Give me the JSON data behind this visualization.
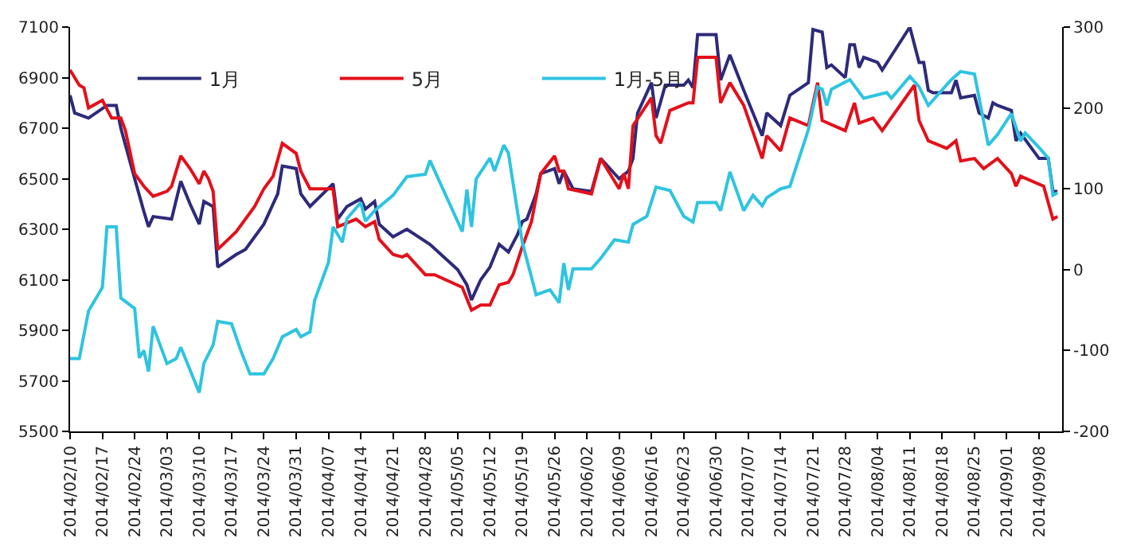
{
  "chart_data": {
    "type": "line",
    "xlim": [
      "2014-02-10",
      "2014-09-13"
    ],
    "xticks": [
      {
        "value": "2014-02-10",
        "label": "2014/02/10"
      },
      {
        "value": "2014-02-17",
        "label": "2014/02/17"
      },
      {
        "value": "2014-02-24",
        "label": "2014/02/24"
      },
      {
        "value": "2014-03-03",
        "label": "2014/03/03"
      },
      {
        "value": "2014-03-10",
        "label": "2014/03/10"
      },
      {
        "value": "2014-03-17",
        "label": "2014/03/17"
      },
      {
        "value": "2014-03-24",
        "label": "2014/03/24"
      },
      {
        "value": "2014-03-31",
        "label": "2014/03/31"
      },
      {
        "value": "2014-04-07",
        "label": "2014/04/07"
      },
      {
        "value": "2014-04-14",
        "label": "2014/04/14"
      },
      {
        "value": "2014-04-21",
        "label": "2014/04/21"
      },
      {
        "value": "2014-04-28",
        "label": "2014/04/28"
      },
      {
        "value": "2014-05-05",
        "label": "2014/05/05"
      },
      {
        "value": "2014-05-12",
        "label": "2014/05/12"
      },
      {
        "value": "2014-05-19",
        "label": "2014/05/19"
      },
      {
        "value": "2014-05-26",
        "label": "2014/05/26"
      },
      {
        "value": "2014-06-02",
        "label": "2014/06/02"
      },
      {
        "value": "2014-06-09",
        "label": "2014/06/09"
      },
      {
        "value": "2014-06-16",
        "label": "2014/06/16"
      },
      {
        "value": "2014-06-23",
        "label": "2014/06/23"
      },
      {
        "value": "2014-06-30",
        "label": "2014/06/30"
      },
      {
        "value": "2014-07-07",
        "label": "2014/07/07"
      },
      {
        "value": "2014-07-14",
        "label": "2014/07/14"
      },
      {
        "value": "2014-07-21",
        "label": "2014/07/21"
      },
      {
        "value": "2014-07-28",
        "label": "2014/07/28"
      },
      {
        "value": "2014-08-04",
        "label": "2014/08/04"
      },
      {
        "value": "2014-08-11",
        "label": "2014/08/11"
      },
      {
        "value": "2014-08-18",
        "label": "2014/08/18"
      },
      {
        "value": "2014-08-25",
        "label": "2014/08/25"
      },
      {
        "value": "2014-09-01",
        "label": "2014/09/01"
      },
      {
        "value": "2014-09-08",
        "label": "2014/09/08"
      }
    ],
    "ylim": [
      5500,
      7100
    ],
    "yticks": [
      5500,
      5700,
      5900,
      6100,
      6300,
      6500,
      6700,
      6900,
      7100
    ],
    "y2lim": [
      -200,
      300
    ],
    "y2ticks": [
      -200,
      -100,
      0,
      100,
      200,
      300
    ],
    "grid": false,
    "legend": "top",
    "marker": "none",
    "line_style": "solid",
    "series": [
      {
        "name": "1月",
        "color": "#2e2a7a",
        "x": [
          "2014-02-10",
          "2014-02-11",
          "2014-02-14",
          "2014-02-18",
          "2014-02-20",
          "2014-02-21",
          "2014-02-24",
          "2014-02-26",
          "2014-02-27",
          "2014-02-28",
          "2014-03-04",
          "2014-03-06",
          "2014-03-08",
          "2014-03-10",
          "2014-03-11",
          "2014-03-13",
          "2014-03-14",
          "2014-03-18",
          "2014-03-20",
          "2014-03-24",
          "2014-03-27",
          "2014-03-28",
          "2014-03-31",
          "2014-04-01",
          "2014-04-03",
          "2014-04-08",
          "2014-04-09",
          "2014-04-11",
          "2014-04-14",
          "2014-04-15",
          "2014-04-17",
          "2014-04-18",
          "2014-04-21",
          "2014-04-24",
          "2014-04-29",
          "2014-05-05",
          "2014-05-07",
          "2014-05-08",
          "2014-05-10",
          "2014-05-12",
          "2014-05-14",
          "2014-05-16",
          "2014-05-18",
          "2014-05-19",
          "2014-05-20",
          "2014-05-22",
          "2014-05-23",
          "2014-05-26",
          "2014-05-27",
          "2014-05-28",
          "2014-05-30",
          "2014-06-03",
          "2014-06-05",
          "2014-06-09",
          "2014-06-11",
          "2014-06-12",
          "2014-06-13",
          "2014-06-16",
          "2014-06-17",
          "2014-06-19",
          "2014-06-23",
          "2014-06-24",
          "2014-06-25",
          "2014-06-26",
          "2014-06-30",
          "2014-07-01",
          "2014-07-03",
          "2014-07-06",
          "2014-07-10",
          "2014-07-11",
          "2014-07-14",
          "2014-07-16",
          "2014-07-20",
          "2014-07-21",
          "2014-07-23",
          "2014-07-24",
          "2014-07-25",
          "2014-07-28",
          "2014-07-29",
          "2014-07-30",
          "2014-07-31",
          "2014-08-01",
          "2014-08-04",
          "2014-08-05",
          "2014-08-11",
          "2014-08-13",
          "2014-08-14",
          "2014-08-15",
          "2014-08-16",
          "2014-08-20",
          "2014-08-21",
          "2014-08-22",
          "2014-08-25",
          "2014-08-26",
          "2014-08-28",
          "2014-08-29",
          "2014-08-30",
          "2014-09-02",
          "2014-09-03",
          "2014-09-04",
          "2014-09-08",
          "2014-09-10",
          "2014-09-11",
          "2014-09-12"
        ],
        "values": [
          6830,
          6760,
          6740,
          6790,
          6790,
          6700,
          6500,
          6370,
          6310,
          6350,
          6340,
          6490,
          6400,
          6320,
          6410,
          6390,
          6150,
          6200,
          6220,
          6320,
          6440,
          6550,
          6540,
          6440,
          6390,
          6480,
          6340,
          6390,
          6420,
          6380,
          6410,
          6320,
          6270,
          6300,
          6240,
          6140,
          6080,
          6020,
          6100,
          6150,
          6240,
          6210,
          6280,
          6330,
          6340,
          6440,
          6520,
          6540,
          6480,
          6530,
          6460,
          6450,
          6580,
          6500,
          6530,
          6580,
          6760,
          6880,
          6740,
          6870,
          6870,
          6890,
          6860,
          7070,
          7070,
          6890,
          6990,
          6850,
          6670,
          6760,
          6710,
          6830,
          6880,
          7090,
          7080,
          6940,
          6950,
          6900,
          7030,
          7030,
          6940,
          6980,
          6960,
          6930,
          7100,
          6960,
          6960,
          6850,
          6840,
          6840,
          6890,
          6820,
          6830,
          6760,
          6740,
          6800,
          6790,
          6770,
          6650,
          6680,
          6580,
          6580,
          6450,
          6450
        ]
      },
      {
        "name": "5月",
        "color": "#e3101a",
        "x": [
          "2014-02-10",
          "2014-02-12",
          "2014-02-13",
          "2014-02-14",
          "2014-02-17",
          "2014-02-19",
          "2014-02-21",
          "2014-02-22",
          "2014-02-24",
          "2014-02-26",
          "2014-02-28",
          "2014-03-03",
          "2014-03-04",
          "2014-03-06",
          "2014-03-08",
          "2014-03-10",
          "2014-03-11",
          "2014-03-12",
          "2014-03-13",
          "2014-03-14",
          "2014-03-18",
          "2014-03-22",
          "2014-03-24",
          "2014-03-26",
          "2014-03-28",
          "2014-03-31",
          "2014-04-01",
          "2014-04-03",
          "2014-04-08",
          "2014-04-09",
          "2014-04-13",
          "2014-04-15",
          "2014-04-17",
          "2014-04-18",
          "2014-04-21",
          "2014-04-23",
          "2014-04-24",
          "2014-04-28",
          "2014-04-30",
          "2014-05-06",
          "2014-05-08",
          "2014-05-10",
          "2014-05-12",
          "2014-05-14",
          "2014-05-16",
          "2014-05-17",
          "2014-05-19",
          "2014-05-21",
          "2014-05-23",
          "2014-05-26",
          "2014-05-27",
          "2014-05-28",
          "2014-05-29",
          "2014-06-03",
          "2014-06-05",
          "2014-06-09",
          "2014-06-10",
          "2014-06-11",
          "2014-06-12",
          "2014-06-16",
          "2014-06-17",
          "2014-06-18",
          "2014-06-20",
          "2014-06-24",
          "2014-06-25",
          "2014-06-26",
          "2014-06-30",
          "2014-07-01",
          "2014-07-03",
          "2014-07-06",
          "2014-07-10",
          "2014-07-11",
          "2014-07-14",
          "2014-07-16",
          "2014-07-20",
          "2014-07-22",
          "2014-07-23",
          "2014-07-28",
          "2014-07-30",
          "2014-07-31",
          "2014-08-03",
          "2014-08-05",
          "2014-08-12",
          "2014-08-13",
          "2014-08-15",
          "2014-08-19",
          "2014-08-21",
          "2014-08-22",
          "2014-08-25",
          "2014-08-27",
          "2014-08-30",
          "2014-09-02",
          "2014-09-03",
          "2014-09-04",
          "2014-09-09",
          "2014-09-11",
          "2014-09-12"
        ],
        "values": [
          6930,
          6870,
          6860,
          6780,
          6810,
          6740,
          6740,
          6690,
          6520,
          6470,
          6430,
          6450,
          6470,
          6590,
          6540,
          6480,
          6530,
          6500,
          6450,
          6220,
          6290,
          6390,
          6460,
          6510,
          6640,
          6600,
          6530,
          6460,
          6460,
          6310,
          6340,
          6310,
          6330,
          6260,
          6200,
          6190,
          6200,
          6120,
          6120,
          6070,
          5980,
          6000,
          6000,
          6080,
          6090,
          6120,
          6230,
          6330,
          6520,
          6590,
          6530,
          6530,
          6460,
          6440,
          6580,
          6460,
          6520,
          6460,
          6710,
          6820,
          6670,
          6640,
          6770,
          6800,
          6800,
          6980,
          6980,
          6800,
          6880,
          6790,
          6580,
          6670,
          6610,
          6740,
          6710,
          6880,
          6730,
          6690,
          6800,
          6720,
          6740,
          6690,
          6870,
          6730,
          6650,
          6620,
          6650,
          6570,
          6580,
          6540,
          6580,
          6520,
          6470,
          6510,
          6470,
          6340,
          6350
        ]
      },
      {
        "name": "1月-5月",
        "color": "#2ec4e0",
        "axis": "y2",
        "x": [
          "2014-02-10",
          "2014-02-12",
          "2014-02-14",
          "2014-02-17",
          "2014-02-18",
          "2014-02-20",
          "2014-02-21",
          "2014-02-24",
          "2014-02-25",
          "2014-02-26",
          "2014-02-27",
          "2014-02-28",
          "2014-03-03",
          "2014-03-05",
          "2014-03-06",
          "2014-03-07",
          "2014-03-10",
          "2014-03-11",
          "2014-03-13",
          "2014-03-14",
          "2014-03-17",
          "2014-03-19",
          "2014-03-21",
          "2014-03-24",
          "2014-03-26",
          "2014-03-28",
          "2014-03-31",
          "2014-04-01",
          "2014-04-03",
          "2014-04-04",
          "2014-04-07",
          "2014-04-08",
          "2014-04-10",
          "2014-04-11",
          "2014-04-14",
          "2014-04-15",
          "2014-04-17",
          "2014-04-21",
          "2014-04-24",
          "2014-04-28",
          "2014-04-29",
          "2014-05-06",
          "2014-05-07",
          "2014-05-08",
          "2014-05-09",
          "2014-05-12",
          "2014-05-13",
          "2014-05-15",
          "2014-05-16",
          "2014-05-19",
          "2014-05-22",
          "2014-05-25",
          "2014-05-27",
          "2014-05-28",
          "2014-05-29",
          "2014-05-30",
          "2014-06-03",
          "2014-06-05",
          "2014-06-08",
          "2014-06-11",
          "2014-06-12",
          "2014-06-15",
          "2014-06-17",
          "2014-06-20",
          "2014-06-23",
          "2014-06-25",
          "2014-06-26",
          "2014-06-30",
          "2014-07-01",
          "2014-07-03",
          "2014-07-06",
          "2014-07-08",
          "2014-07-10",
          "2014-07-11",
          "2014-07-14",
          "2014-07-16",
          "2014-07-20",
          "2014-07-22",
          "2014-07-23",
          "2014-07-24",
          "2014-07-25",
          "2014-07-29",
          "2014-08-01",
          "2014-08-06",
          "2014-08-07",
          "2014-08-11",
          "2014-08-13",
          "2014-08-15",
          "2014-08-20",
          "2014-08-22",
          "2014-08-25",
          "2014-08-28",
          "2014-08-30",
          "2014-09-02",
          "2014-09-04",
          "2014-09-05",
          "2014-09-08",
          "2014-09-10",
          "2014-09-11",
          "2014-09-12"
        ],
        "values": [
          -110,
          -110,
          -51,
          -22,
          53,
          53,
          -35,
          -48,
          -109,
          -100,
          -126,
          -70,
          -116,
          -110,
          -96,
          -110,
          -152,
          -116,
          -93,
          -64,
          -67,
          -100,
          -129,
          -129,
          -110,
          -83,
          -74,
          -83,
          -77,
          -38,
          9,
          53,
          34,
          63,
          83,
          60,
          73,
          92,
          115,
          118,
          135,
          47,
          99,
          53,
          112,
          138,
          122,
          154,
          144,
          34,
          -31,
          -25,
          -41,
          8,
          -25,
          1,
          1,
          14,
          37,
          34,
          56,
          66,
          102,
          98,
          66,
          59,
          83,
          83,
          73,
          121,
          73,
          92,
          79,
          89,
          100,
          103,
          173,
          226,
          223,
          203,
          223,
          235,
          212,
          219,
          212,
          239,
          226,
          203,
          235,
          245,
          242,
          154,
          167,
          193,
          159,
          169,
          151,
          138,
          92,
          95
        ]
      }
    ]
  }
}
